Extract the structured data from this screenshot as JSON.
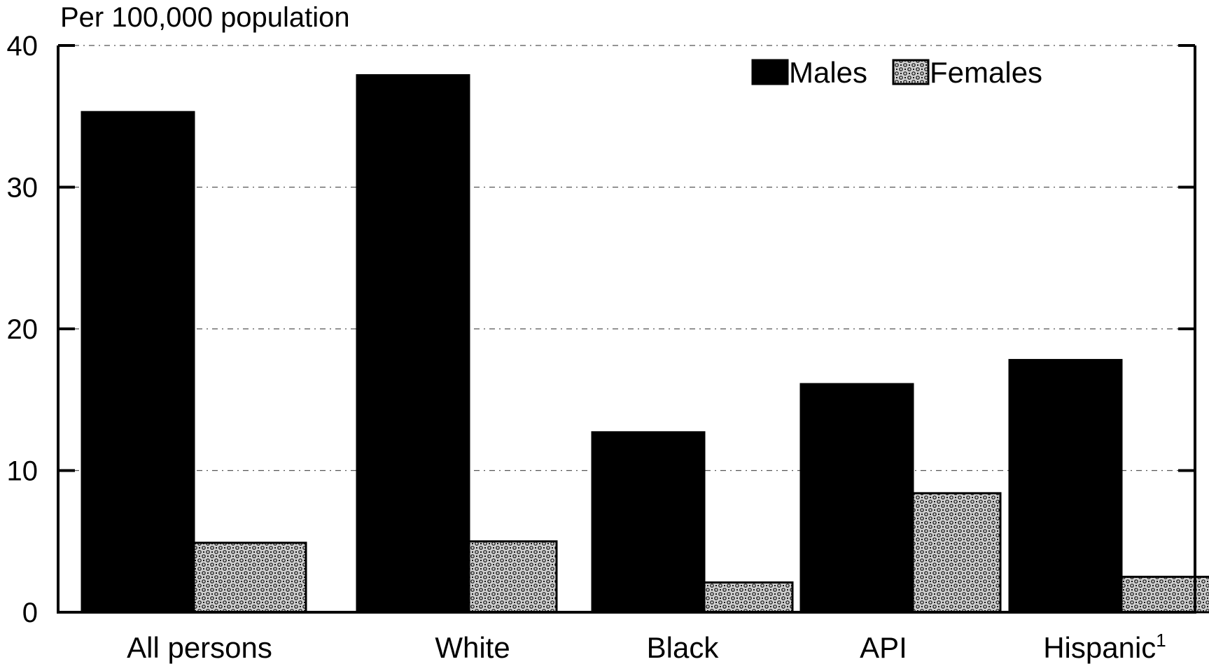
{
  "chart_data": {
    "type": "bar",
    "title": "",
    "ylabel": "Per 100,000 population",
    "xlabel": "",
    "categories": [
      "All persons",
      "White",
      "Black",
      "API",
      "Hispanic"
    ],
    "category_superscripts": [
      "",
      "",
      "",
      "",
      "1"
    ],
    "series": [
      {
        "name": "Males",
        "values": [
          35.3,
          37.9,
          12.7,
          16.1,
          17.8
        ],
        "fill": "#000000",
        "pattern": "solid"
      },
      {
        "name": "Females",
        "values": [
          4.9,
          5.0,
          2.1,
          8.4,
          2.5
        ],
        "fill": "#d0d0d0",
        "pattern": "crosshatch"
      }
    ],
    "ylim": [
      0,
      40
    ],
    "yticks": [
      0,
      10,
      20,
      30,
      40
    ],
    "grid": true,
    "grid_style": "dash-dot",
    "legend_position": "top-right"
  }
}
